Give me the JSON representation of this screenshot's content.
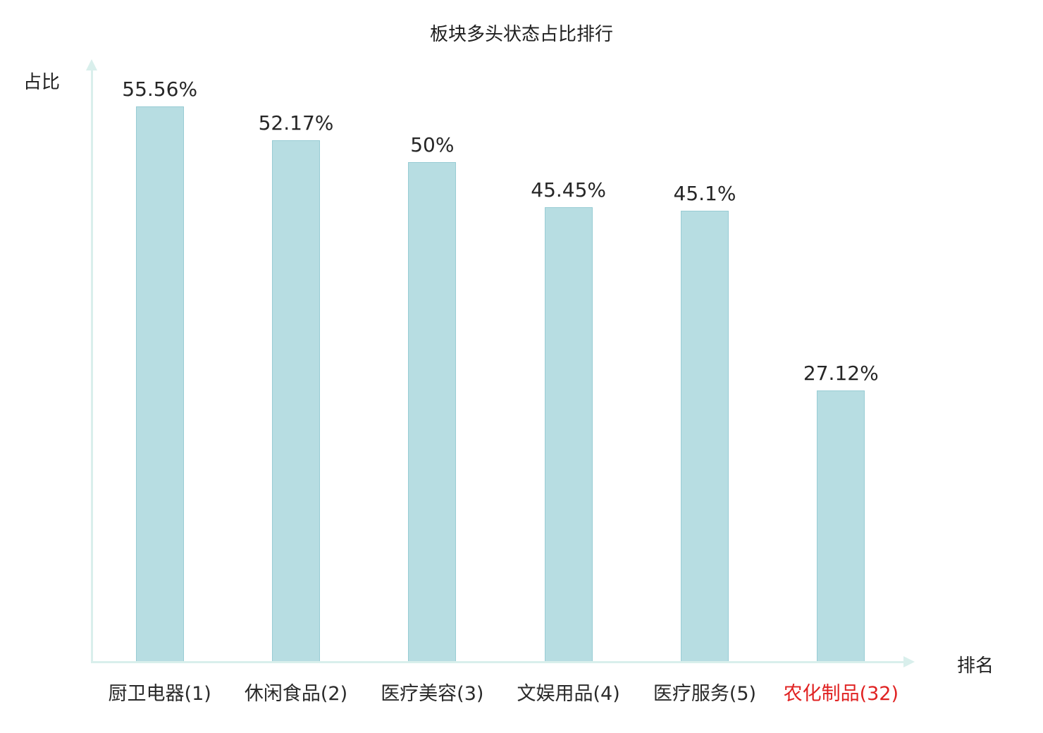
{
  "chart_data": {
    "type": "bar",
    "title": "板块多头状态占比排行",
    "xlabel": "排名",
    "ylabel": "占比",
    "categories": [
      "厨卫电器(1)",
      "休闲食品(2)",
      "医疗美容(3)",
      "文娱用品(4)",
      "医疗服务(5)",
      "农化制品(32)"
    ],
    "values": [
      55.56,
      52.17,
      50,
      45.45,
      45.1,
      27.12
    ],
    "value_labels": [
      "55.56%",
      "52.17%",
      "50%",
      "45.45%",
      "45.1%",
      "27.12%"
    ],
    "highlighted_category_index": 5,
    "ylim": [
      0,
      60
    ],
    "grid": false,
    "legend": "none",
    "colors": {
      "bar_fill": "#b7dde2",
      "bar_border": "#98ccd4",
      "axis": "#d9efec",
      "text": "#262626",
      "highlight": "#e02222"
    }
  }
}
